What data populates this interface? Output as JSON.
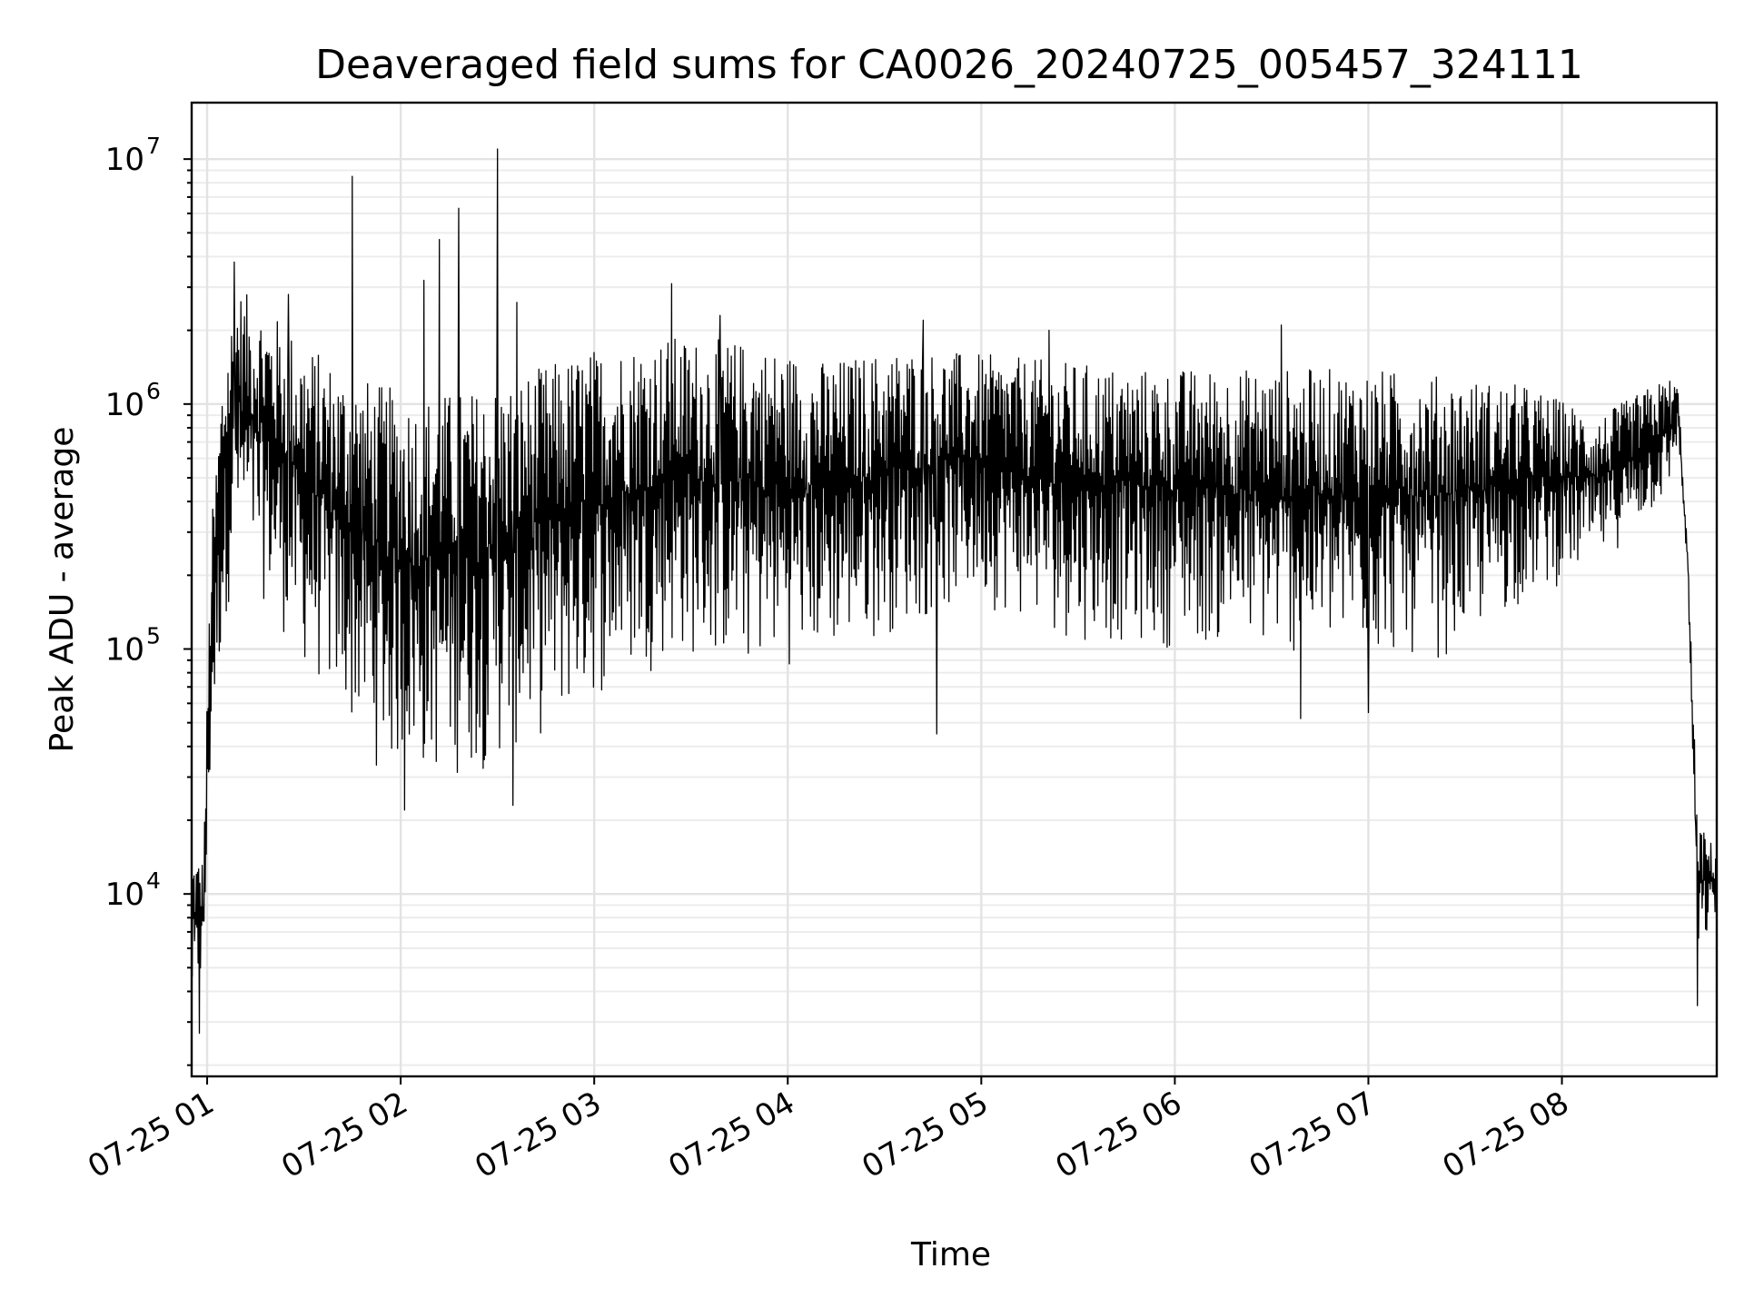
{
  "chart_data": {
    "type": "line",
    "title": "Deaveraged field sums for CA0026_20240725_005457_324111",
    "xlabel": "Time",
    "ylabel": "Peak ADU - average",
    "yscale": "log",
    "ylim": [
      1800,
      17000000
    ],
    "xlim_hours": [
      0.92,
      8.8
    ],
    "grid": true,
    "x_ticks": [
      {
        "hour": 1,
        "label": "07-25 01"
      },
      {
        "hour": 2,
        "label": "07-25 02"
      },
      {
        "hour": 3,
        "label": "07-25 03"
      },
      {
        "hour": 4,
        "label": "07-25 04"
      },
      {
        "hour": 5,
        "label": "07-25 05"
      },
      {
        "hour": 6,
        "label": "07-25 06"
      },
      {
        "hour": 7,
        "label": "07-25 07"
      },
      {
        "hour": 8,
        "label": "07-25 08"
      }
    ],
    "y_ticks": [
      {
        "value": 10000,
        "base": "10",
        "exp": "4"
      },
      {
        "value": 100000,
        "base": "10",
        "exp": "5"
      },
      {
        "value": 1000000,
        "base": "10",
        "exp": "6"
      },
      {
        "value": 10000000,
        "base": "10",
        "exp": "7"
      }
    ],
    "series": [
      {
        "color": "#000000",
        "envelope": [
          {
            "hour": 0.92,
            "lo": 3000,
            "hi": 15000
          },
          {
            "hour": 0.98,
            "lo": 4000,
            "hi": 14000
          },
          {
            "hour": 1.02,
            "lo": 30000,
            "hi": 300000
          },
          {
            "hour": 1.08,
            "lo": 100000,
            "hi": 1500000
          },
          {
            "hour": 1.15,
            "lo": 250000,
            "hi": 3000000
          },
          {
            "hour": 1.3,
            "lo": 150000,
            "hi": 2500000
          },
          {
            "hour": 1.5,
            "lo": 80000,
            "hi": 1800000
          },
          {
            "hour": 1.7,
            "lo": 50000,
            "hi": 1400000
          },
          {
            "hour": 1.9,
            "lo": 30000,
            "hi": 1200000
          },
          {
            "hour": 2.1,
            "lo": 28000,
            "hi": 1100000
          },
          {
            "hour": 2.4,
            "lo": 30000,
            "hi": 1150000
          },
          {
            "hour": 2.7,
            "lo": 40000,
            "hi": 1400000
          },
          {
            "hour": 3.0,
            "lo": 60000,
            "hi": 1700000
          },
          {
            "hour": 3.4,
            "lo": 90000,
            "hi": 1900000
          },
          {
            "hour": 3.8,
            "lo": 80000,
            "hi": 1800000
          },
          {
            "hour": 4.2,
            "lo": 90000,
            "hi": 1500000
          },
          {
            "hour": 4.6,
            "lo": 120000,
            "hi": 1700000
          },
          {
            "hour": 5.0,
            "lo": 150000,
            "hi": 1600000
          },
          {
            "hour": 5.4,
            "lo": 110000,
            "hi": 1500000
          },
          {
            "hour": 5.8,
            "lo": 100000,
            "hi": 1400000
          },
          {
            "hour": 6.2,
            "lo": 100000,
            "hi": 1400000
          },
          {
            "hour": 6.6,
            "lo": 90000,
            "hi": 1400000
          },
          {
            "hour": 7.0,
            "lo": 90000,
            "hi": 1400000
          },
          {
            "hour": 7.4,
            "lo": 90000,
            "hi": 1300000
          },
          {
            "hour": 7.8,
            "lo": 150000,
            "hi": 1200000
          },
          {
            "hour": 8.2,
            "lo": 220000,
            "hi": 900000
          },
          {
            "hour": 8.55,
            "lo": 400000,
            "hi": 1300000
          },
          {
            "hour": 8.6,
            "lo": 700000,
            "hi": 1200000
          },
          {
            "hour": 8.65,
            "lo": 200000,
            "hi": 250000
          },
          {
            "hour": 8.7,
            "lo": 5000,
            "hi": 20000
          },
          {
            "hour": 8.8,
            "lo": 8000,
            "hi": 15000
          }
        ],
        "spikes": [
          {
            "hour": 1.75,
            "value": 8500000
          },
          {
            "hour": 2.5,
            "value": 11000000
          },
          {
            "hour": 2.3,
            "value": 6300000
          },
          {
            "hour": 2.2,
            "value": 4700000
          },
          {
            "hour": 2.12,
            "value": 3200000
          },
          {
            "hour": 2.6,
            "value": 2600000
          },
          {
            "hour": 3.4,
            "value": 3100000
          },
          {
            "hour": 3.65,
            "value": 2300000
          },
          {
            "hour": 4.7,
            "value": 2200000
          },
          {
            "hour": 5.35,
            "value": 2000000
          },
          {
            "hour": 6.55,
            "value": 2100000
          },
          {
            "hour": 1.42,
            "value": 2800000
          },
          {
            "hour": 1.14,
            "value": 3800000
          }
        ],
        "dips": [
          {
            "hour": 0.96,
            "value": 2700
          },
          {
            "hour": 4.77,
            "value": 45000
          },
          {
            "hour": 8.7,
            "value": 3500
          },
          {
            "hour": 2.02,
            "value": 22000
          },
          {
            "hour": 2.58,
            "value": 23000
          },
          {
            "hour": 6.65,
            "value": 52000
          },
          {
            "hour": 7.0,
            "value": 55000
          }
        ]
      }
    ]
  }
}
